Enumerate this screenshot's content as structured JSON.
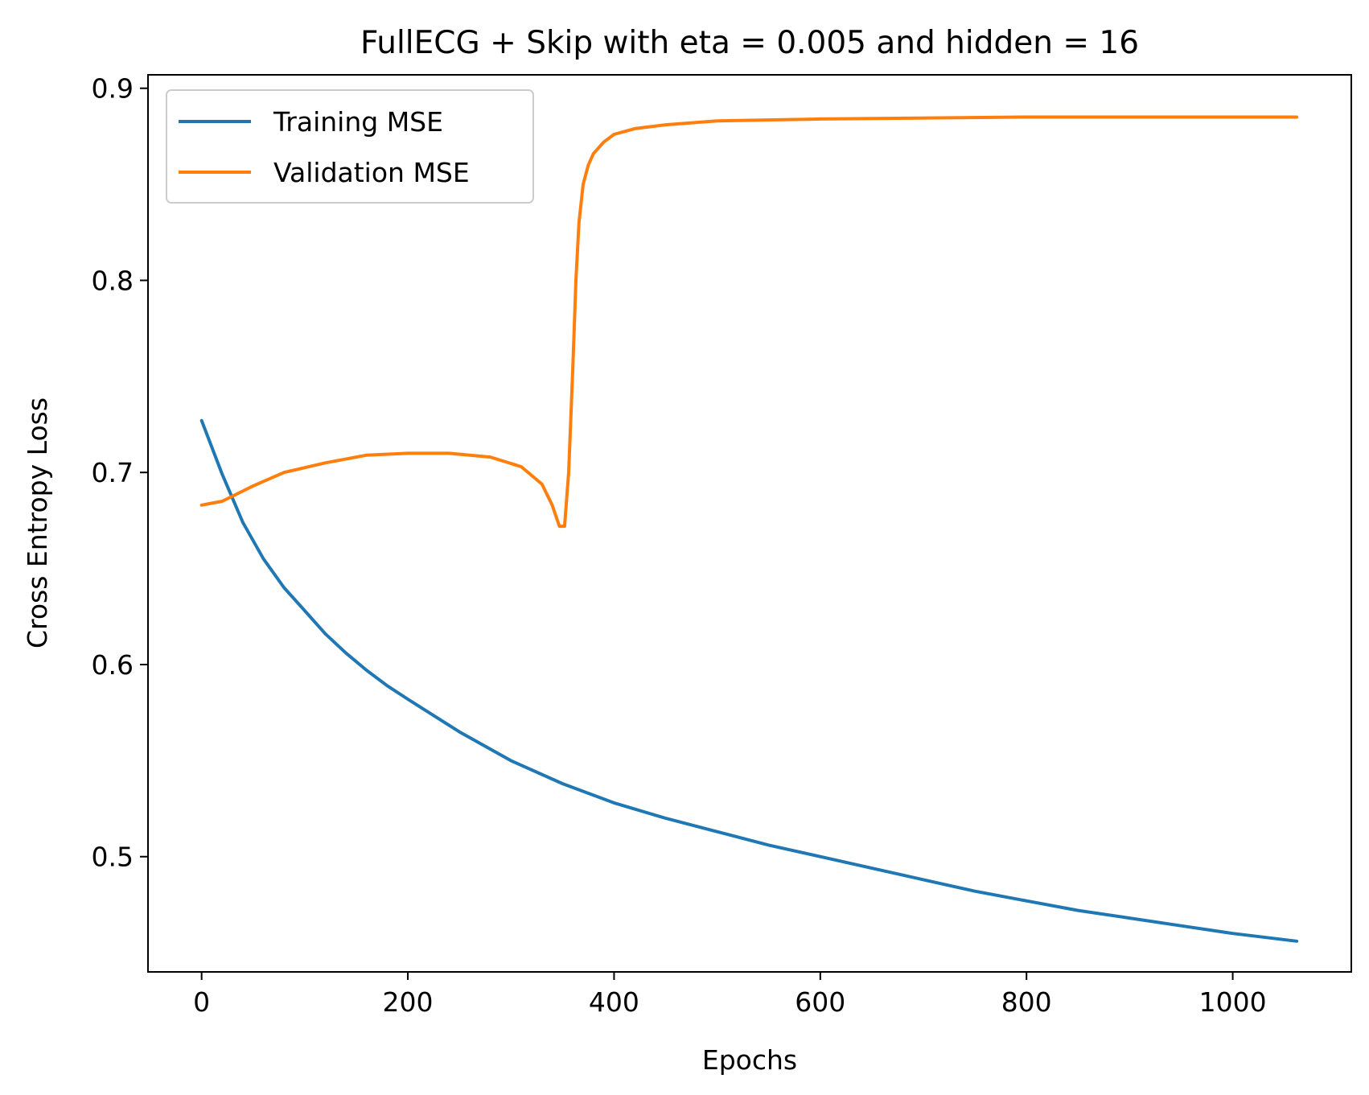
{
  "chart_data": {
    "type": "line",
    "title": "FullECG + Skip with eta = 0.005 and hidden = 16",
    "xlabel": "Epochs",
    "ylabel": "Cross Entropy Loss",
    "xlim": [
      -52,
      1115
    ],
    "ylim": [
      0.44,
      0.907
    ],
    "xticks": [
      0,
      200,
      400,
      600,
      800,
      1000
    ],
    "xtick_labels": [
      "0",
      "200",
      "400",
      "600",
      "800",
      "1000"
    ],
    "yticks": [
      0.5,
      0.6,
      0.7,
      0.8,
      0.9
    ],
    "ytick_labels": [
      "0.5",
      "0.6",
      "0.7",
      "0.8",
      "0.9"
    ],
    "grid": false,
    "legend_position": "upper-left",
    "series": [
      {
        "name": "Training MSE",
        "color": "#1f77b4",
        "x": [
          0,
          20,
          40,
          60,
          80,
          100,
          120,
          140,
          160,
          180,
          200,
          250,
          300,
          350,
          400,
          450,
          500,
          550,
          600,
          650,
          700,
          750,
          800,
          850,
          900,
          950,
          1000,
          1062
        ],
        "y": [
          0.727,
          0.699,
          0.674,
          0.655,
          0.64,
          0.628,
          0.616,
          0.606,
          0.597,
          0.589,
          0.582,
          0.565,
          0.55,
          0.538,
          0.528,
          0.52,
          0.513,
          0.506,
          0.5,
          0.494,
          0.488,
          0.482,
          0.477,
          0.472,
          0.468,
          0.464,
          0.46,
          0.456
        ]
      },
      {
        "name": "Validation MSE",
        "color": "#ff7f0e",
        "x": [
          0,
          20,
          50,
          80,
          120,
          160,
          200,
          240,
          280,
          310,
          330,
          340,
          347,
          352,
          356,
          360,
          363,
          366,
          370,
          375,
          380,
          390,
          400,
          420,
          450,
          500,
          600,
          800,
          1062
        ],
        "y": [
          0.683,
          0.685,
          0.693,
          0.7,
          0.705,
          0.709,
          0.71,
          0.71,
          0.708,
          0.703,
          0.694,
          0.683,
          0.672,
          0.672,
          0.7,
          0.755,
          0.8,
          0.83,
          0.85,
          0.86,
          0.866,
          0.872,
          0.876,
          0.879,
          0.881,
          0.883,
          0.884,
          0.885,
          0.885
        ]
      }
    ]
  }
}
